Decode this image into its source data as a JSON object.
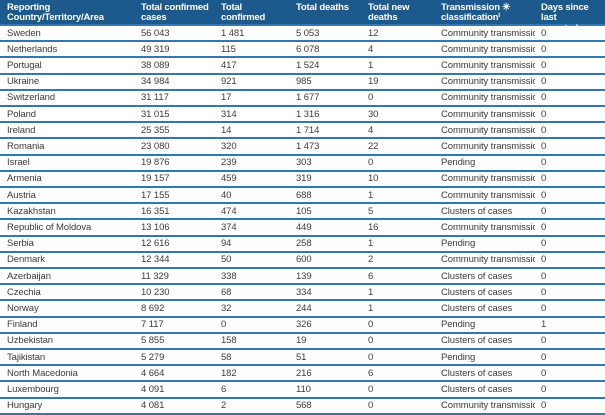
{
  "colors": {
    "header_bg": "#1c5a8d",
    "row_line": "#2e79b5",
    "header_text": "#ffffff",
    "body_text": "#3a3a3a",
    "row_bg": "#ffffff"
  },
  "table": {
    "columns": [
      "Reporting Country/Territory/Area",
      "Total confirmed\ncases",
      "Total confirmed\nnew cases",
      "Total deaths",
      "Total new deaths",
      "Transmission ✳\nclassificationⁱ",
      "Days since last\nreported case"
    ],
    "rows": [
      [
        "Sweden",
        "56 043",
        "1 481",
        "5 053",
        "12",
        "Community transmission",
        "0"
      ],
      [
        "Netherlands",
        "49 319",
        "115",
        "6 078",
        "4",
        "Community transmission",
        "0"
      ],
      [
        "Portugal",
        "38 089",
        "417",
        "1 524",
        "1",
        "Community transmission",
        "0"
      ],
      [
        "Ukraine",
        "34 984",
        "921",
        "985",
        "19",
        "Community transmission",
        "0"
      ],
      [
        "Switzerland",
        "31 117",
        "17",
        "1 677",
        "0",
        "Community transmission",
        "0"
      ],
      [
        "Poland",
        "31 015",
        "314",
        "1 316",
        "30",
        "Community transmission",
        "0"
      ],
      [
        "Ireland",
        "25 355",
        "14",
        "1 714",
        "4",
        "Community transmission",
        "0"
      ],
      [
        "Romania",
        "23 080",
        "320",
        "1 473",
        "22",
        "Community transmission",
        "0"
      ],
      [
        "Israel",
        "19 876",
        "239",
        "303",
        "0",
        "Pending",
        "0"
      ],
      [
        "Armenia",
        "19 157",
        "459",
        "319",
        "10",
        "Community transmission",
        "0"
      ],
      [
        "Austria",
        "17 155",
        "40",
        "688",
        "1",
        "Community transmission",
        "0"
      ],
      [
        "Kazakhstan",
        "16 351",
        "474",
        "105",
        "5",
        "Clusters of cases",
        "0"
      ],
      [
        "Republic of Moldova",
        "13 106",
        "374",
        "449",
        "16",
        "Community transmission",
        "0"
      ],
      [
        "Serbia",
        "12 616",
        "94",
        "258",
        "1",
        "Pending",
        "0"
      ],
      [
        "Denmark",
        "12 344",
        "50",
        "600",
        "2",
        "Community transmission",
        "0"
      ],
      [
        "Azerbaijan",
        "11 329",
        "338",
        "139",
        "6",
        "Clusters of cases",
        "0"
      ],
      [
        "Czechia",
        "10 230",
        "68",
        "334",
        "1",
        "Clusters of cases",
        "0"
      ],
      [
        "Norway",
        "8 692",
        "32",
        "244",
        "1",
        "Clusters of cases",
        "0"
      ],
      [
        "Finland",
        "7 117",
        "0",
        "326",
        "0",
        "Pending",
        "1"
      ],
      [
        "Uzbekistan",
        "5 855",
        "158",
        "19",
        "0",
        "Clusters of cases",
        "0"
      ],
      [
        "Tajikistan",
        "5 279",
        "58",
        "51",
        "0",
        "Pending",
        "0"
      ],
      [
        "North Macedonia",
        "4 664",
        "182",
        "216",
        "6",
        "Clusters of cases",
        "0"
      ],
      [
        "Luxembourg",
        "4 091",
        "6",
        "110",
        "0",
        "Clusters of cases",
        "0"
      ],
      [
        "Hungary",
        "4 081",
        "2",
        "568",
        "0",
        "Community transmission",
        "0"
      ]
    ]
  }
}
